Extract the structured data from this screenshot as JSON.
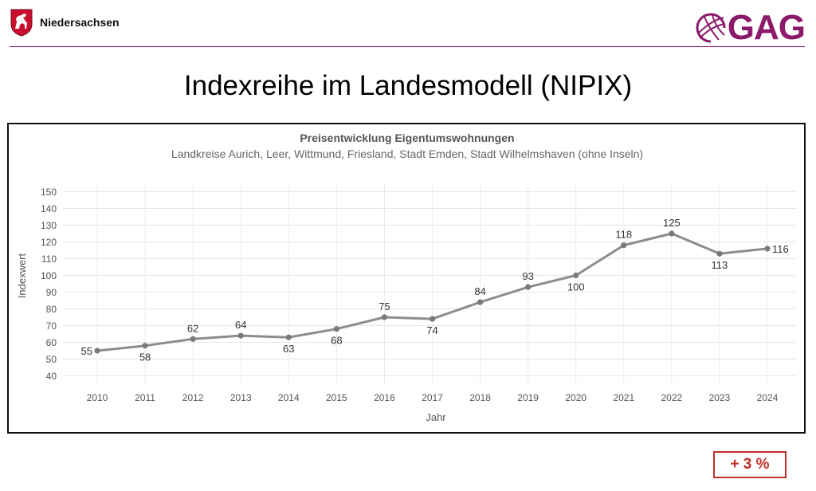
{
  "header": {
    "state_name": "Niedersachsen",
    "company_logo_text": "GAG"
  },
  "slide": {
    "title": "Indexreihe im Landesmodell (NIPIX)",
    "change_badge": "+ 3 %"
  },
  "colors": {
    "brand": "#8b1a6b",
    "line": "#8c8c8c",
    "accent_red": "#c0302a"
  },
  "chart_data": {
    "type": "line",
    "title": "Preisentwicklung Eigentumswohnungen",
    "subtitle": "Landkreise Aurich, Leer, Wittmund, Friesland, Stadt Emden, Stadt Wilhelmshaven (ohne Inseln)",
    "xlabel": "Jahr",
    "ylabel": "Indexwert",
    "categories": [
      "2010",
      "2011",
      "2012",
      "2013",
      "2014",
      "2015",
      "2016",
      "2017",
      "2018",
      "2019",
      "2020",
      "2021",
      "2022",
      "2023",
      "2024"
    ],
    "values": [
      55,
      58,
      62,
      64,
      63,
      68,
      75,
      74,
      84,
      93,
      100,
      118,
      125,
      113,
      116
    ],
    "label_positions": [
      "left",
      "below",
      "above",
      "above",
      "below",
      "below",
      "above",
      "below",
      "above",
      "above",
      "below",
      "above",
      "above",
      "below",
      "right"
    ],
    "yticks": [
      40,
      50,
      60,
      70,
      80,
      90,
      100,
      110,
      120,
      130,
      140,
      150
    ],
    "ylim": [
      35,
      155
    ],
    "grid": true
  }
}
